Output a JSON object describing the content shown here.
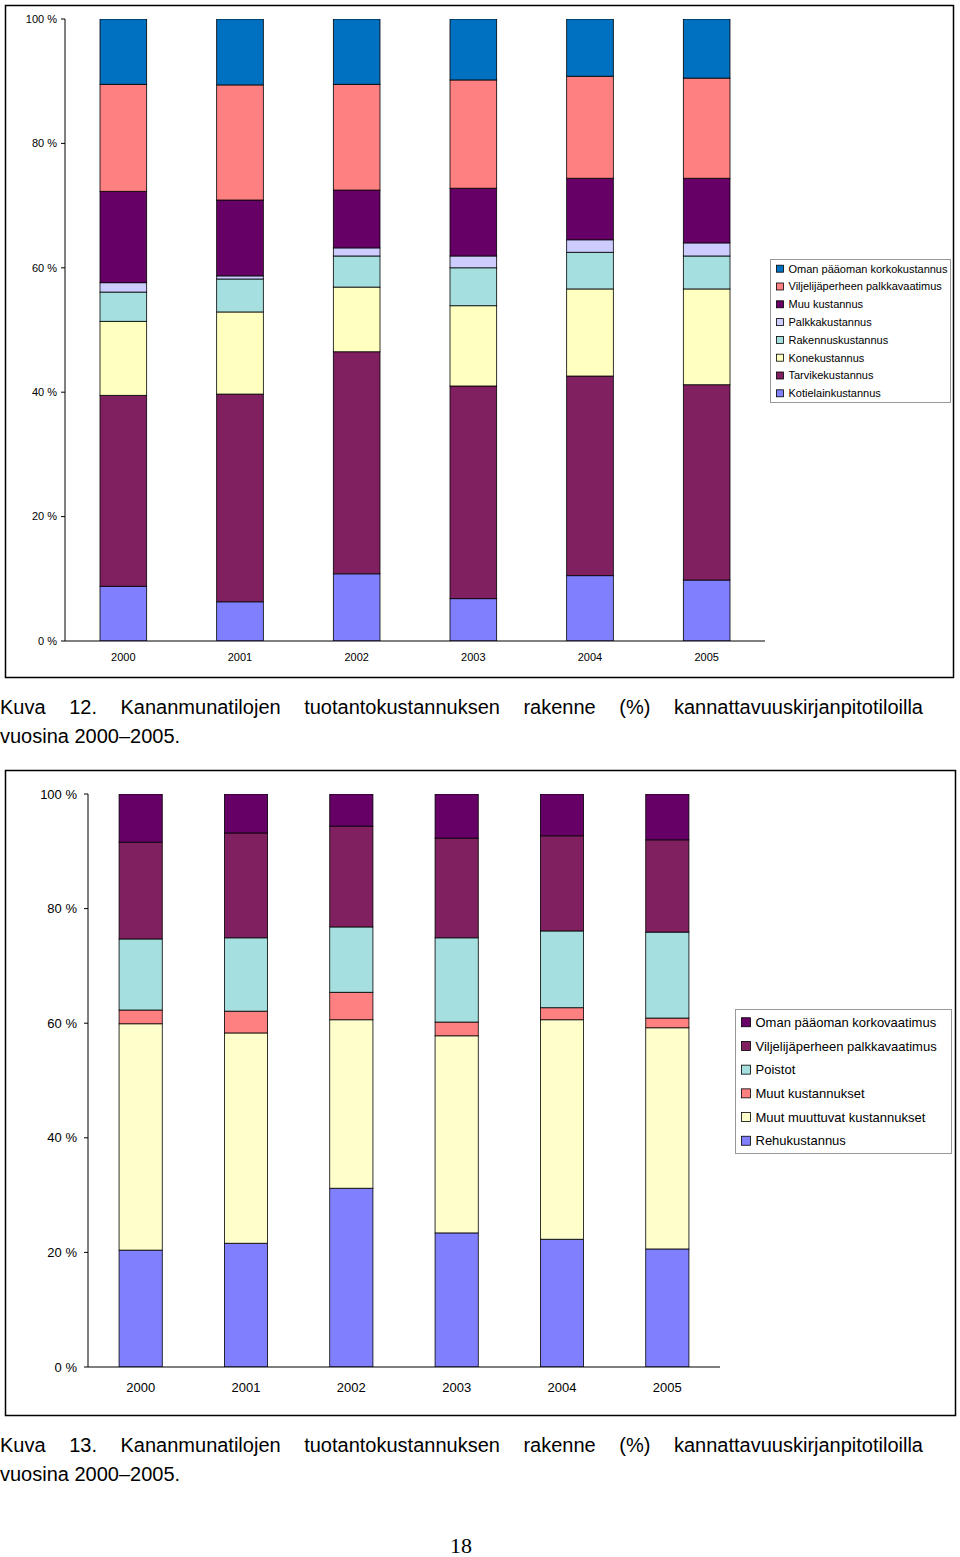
{
  "chart_data": [
    {
      "type": "bar",
      "stacked": true,
      "legend": "right",
      "caption": [
        "Kuva 12. Kananmunatilojen tuotantokustannuksen rakenne (%) kannattavuuskirjanpitotiloilla",
        "vuosina 2000–2005."
      ],
      "categories": [
        "2000",
        "2001",
        "2002",
        "2003",
        "2004",
        "2005"
      ],
      "ylim": [
        0,
        100
      ],
      "yticks": [
        {
          "value": 0,
          "label": "0 %"
        },
        {
          "value": 20,
          "label": "20 %"
        },
        {
          "value": 40,
          "label": "40 %"
        },
        {
          "value": 60,
          "label": "60 %"
        },
        {
          "value": 80,
          "label": "80 %"
        },
        {
          "value": 100,
          "label": "100 %"
        }
      ],
      "series": [
        {
          "name": "Kotielainkustannus",
          "color": "#8080ff",
          "values": [
            8.8,
            6.3,
            10.8,
            6.8,
            10.5,
            9.8
          ]
        },
        {
          "name": "Tarvikekustannus",
          "color": "#802060",
          "values": [
            30.7,
            33.4,
            35.7,
            34.2,
            32.1,
            31.4
          ]
        },
        {
          "name": "Konekustannus",
          "color": "#ffffc0",
          "values": [
            11.9,
            13.2,
            10.4,
            12.9,
            14.0,
            15.4
          ]
        },
        {
          "name": "Rakennuskustannus",
          "color": "#a6dfdf",
          "values": [
            4.7,
            5.3,
            5.0,
            6.1,
            5.9,
            5.3
          ]
        },
        {
          "name": "Palkkakustannus",
          "color": "#ccccff",
          "values": [
            1.5,
            0.5,
            1.3,
            1.9,
            2.0,
            2.1
          ]
        },
        {
          "name": "Muu kustannus",
          "color": "#660066",
          "values": [
            14.7,
            12.2,
            9.3,
            10.9,
            9.9,
            10.4
          ]
        },
        {
          "name": "Viljelijäperheen palkkavaatimus",
          "color": "#ff8080",
          "values": [
            17.2,
            18.5,
            17.0,
            17.4,
            16.4,
            16.1
          ]
        },
        {
          "name": "Oman pääoman korkokustannus",
          "color": "#0070c0",
          "values": [
            10.5,
            10.6,
            10.5,
            9.8,
            9.2,
            9.5
          ]
        }
      ]
    },
    {
      "type": "bar",
      "stacked": true,
      "legend": "right",
      "caption": [
        "Kuva 13. Kananmunatilojen tuotantokustannuksen rakenne (%) kannattavuuskirjanpitotiloilla",
        "vuosina 2000–2005."
      ],
      "categories": [
        "2000",
        "2001",
        "2002",
        "2003",
        "2004",
        "2005"
      ],
      "ylim": [
        0,
        100
      ],
      "yticks": [
        {
          "value": 0,
          "label": "0 %"
        },
        {
          "value": 20,
          "label": "20 %"
        },
        {
          "value": 40,
          "label": "40 %"
        },
        {
          "value": 60,
          "label": "60 %"
        },
        {
          "value": 80,
          "label": "80 %"
        },
        {
          "value": 100,
          "label": "100 %"
        }
      ],
      "series": [
        {
          "name": "Rehukustannus",
          "color": "#8080ff",
          "values": [
            20.4,
            21.6,
            31.2,
            23.4,
            22.3,
            20.6
          ]
        },
        {
          "name": "Muut muuttuvat kustannukset",
          "color": "#ffffcc",
          "values": [
            39.5,
            36.7,
            29.4,
            34.4,
            38.3,
            38.6
          ]
        },
        {
          "name": "Muut kustannukset",
          "color": "#ff8080",
          "values": [
            2.4,
            3.8,
            4.8,
            2.4,
            2.1,
            1.7
          ]
        },
        {
          "name": "Poistot",
          "color": "#a6dfdf",
          "values": [
            12.4,
            12.8,
            11.4,
            14.7,
            13.4,
            15.0
          ]
        },
        {
          "name": "Viljelijäperheen palkkavaatimus",
          "color": "#802060",
          "values": [
            16.9,
            18.3,
            17.6,
            17.4,
            16.6,
            16.1
          ]
        },
        {
          "name": "Oman pääoman korkovaatimus",
          "color": "#660066",
          "values": [
            8.4,
            6.8,
            5.6,
            7.7,
            7.3,
            8.0
          ]
        }
      ]
    }
  ],
  "page_number": 18
}
